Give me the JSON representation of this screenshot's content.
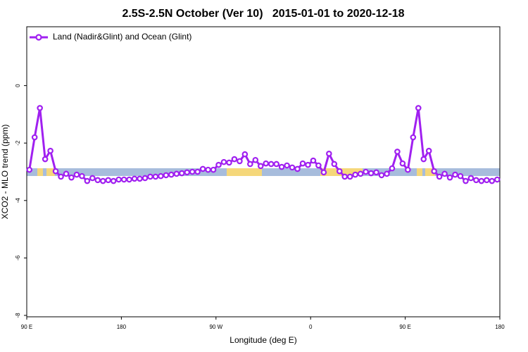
{
  "chart_data": {
    "type": "line",
    "title": "2.5S-2.5N October (Ver 10)   2015-01-01 to 2020-12-18",
    "x_label": "Longitude (deg E)",
    "y_label": "XCO2 - MLO trend (ppm)",
    "xlim": [
      90,
      540
    ],
    "xticks": [
      {
        "value": 90,
        "label": "90 E"
      },
      180,
      {
        "value": 270,
        "label": "90 W"
      },
      {
        "value": 360,
        "label": "0"
      },
      {
        "value": 450,
        "label": "90 E"
      },
      {
        "value": 540,
        "label": "180"
      }
    ],
    "ylim": [
      -8,
      2
    ],
    "yticks": [
      0,
      -2,
      -4,
      -6,
      -8
    ],
    "legend": "top-left",
    "x": [
      92.5,
      97.5,
      102.5,
      107.5,
      112.5,
      117.5,
      122.5,
      127.5,
      132.5,
      137.5,
      142.5,
      147.5,
      152.5,
      157.5,
      162.5,
      167.5,
      172.5,
      177.5,
      182.5,
      187.5,
      192.5,
      197.5,
      202.5,
      207.5,
      212.5,
      217.5,
      222.5,
      227.5,
      232.5,
      237.5,
      242.5,
      247.5,
      252.5,
      257.5,
      262.5,
      267.5,
      272.5,
      277.5,
      282.5,
      287.5,
      292.5,
      297.5,
      302.5,
      307.5,
      312.5,
      317.5,
      322.5,
      327.5,
      332.5,
      337.5,
      342.5,
      347.5,
      352.5,
      357.5,
      362.5,
      367.5,
      372.5,
      377.5,
      382.5,
      387.5,
      392.5,
      397.5,
      402.5,
      407.5,
      412.5,
      417.5,
      422.5,
      427.5,
      432.5,
      437.5,
      442.5,
      447.5,
      452.5,
      457.5,
      462.5,
      467.5,
      472.5,
      477.5,
      482.5,
      487.5,
      492.5,
      497.5,
      502.5,
      507.5,
      512.5,
      517.5,
      522.5,
      527.5,
      532.5,
      537.5
    ],
    "series": [
      {
        "name": "Land (Nadir&Glint) and Ocean (Glint)",
        "color": "#a020f0",
        "values": [
          -2.93,
          -1.8,
          -0.78,
          -2.56,
          -2.27,
          -2.98,
          -3.17,
          -3.07,
          -3.2,
          -3.1,
          -3.15,
          -3.32,
          -3.22,
          -3.29,
          -3.32,
          -3.29,
          -3.32,
          -3.27,
          -3.27,
          -3.27,
          -3.24,
          -3.24,
          -3.22,
          -3.17,
          -3.17,
          -3.15,
          -3.12,
          -3.1,
          -3.07,
          -3.05,
          -3.02,
          -3.0,
          -3.0,
          -2.9,
          -2.93,
          -2.93,
          -2.76,
          -2.66,
          -2.68,
          -2.56,
          -2.63,
          -2.39,
          -2.73,
          -2.59,
          -2.8,
          -2.71,
          -2.73,
          -2.73,
          -2.83,
          -2.78,
          -2.85,
          -2.9,
          -2.71,
          -2.76,
          -2.61,
          -2.78,
          -3.02,
          -2.37,
          -2.73,
          -2.98,
          -3.17,
          -3.17,
          -3.1,
          -3.07,
          -3.0,
          -3.05,
          -3.02,
          -3.12,
          -3.07,
          -2.88,
          -2.3,
          -2.71,
          -2.93,
          -1.8,
          -0.78,
          -2.56,
          -2.27,
          -2.98,
          -3.17,
          -3.07,
          -3.2,
          -3.1,
          -3.15,
          -3.32,
          -3.22,
          -3.29,
          -3.32,
          -3.29,
          -3.32,
          -3.27
        ]
      }
    ]
  }
}
